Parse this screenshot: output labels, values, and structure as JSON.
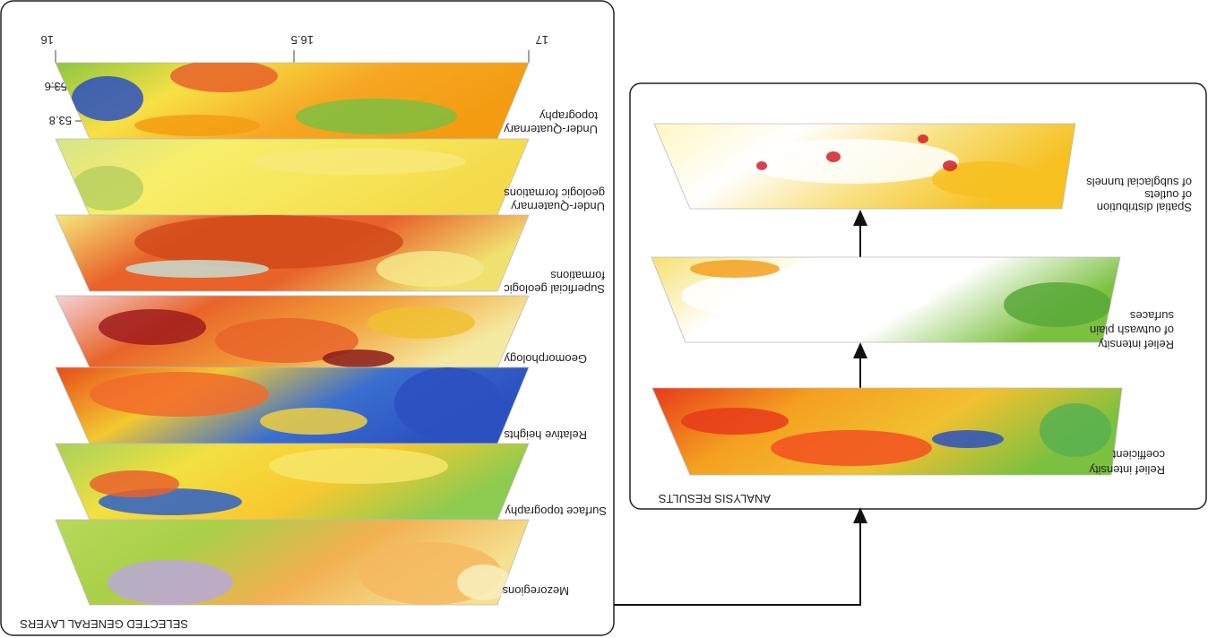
{
  "left_panel": {
    "title": "SELECTED GENERAL LAYERS",
    "lon_labels": [
      "16",
      "16.5",
      "17"
    ],
    "lat_labels": [
      "53.6",
      "53.8"
    ],
    "layers": [
      {
        "label": [
          "Under-Quaternary",
          "topography"
        ]
      },
      {
        "label": [
          "Under-Quaternary",
          "geologic formations"
        ]
      },
      {
        "label": [
          "Superficial geologic",
          "formations"
        ]
      },
      {
        "label": [
          "Geomorphology"
        ]
      },
      {
        "label": [
          "Relative heights"
        ]
      },
      {
        "label": [
          "Surface topography"
        ]
      },
      {
        "label": [
          "Mezoregions"
        ]
      }
    ]
  },
  "right_panel": {
    "title": "ANALYSIS RESULTS",
    "layers": [
      {
        "label": [
          "Spatial distribution",
          "of outlets",
          "of subglacial tunnels"
        ]
      },
      {
        "label": [
          "Relief intensity",
          "of outwash plain",
          "surfaces"
        ]
      },
      {
        "label": [
          "Relief intensity",
          "coefficient"
        ]
      }
    ]
  }
}
